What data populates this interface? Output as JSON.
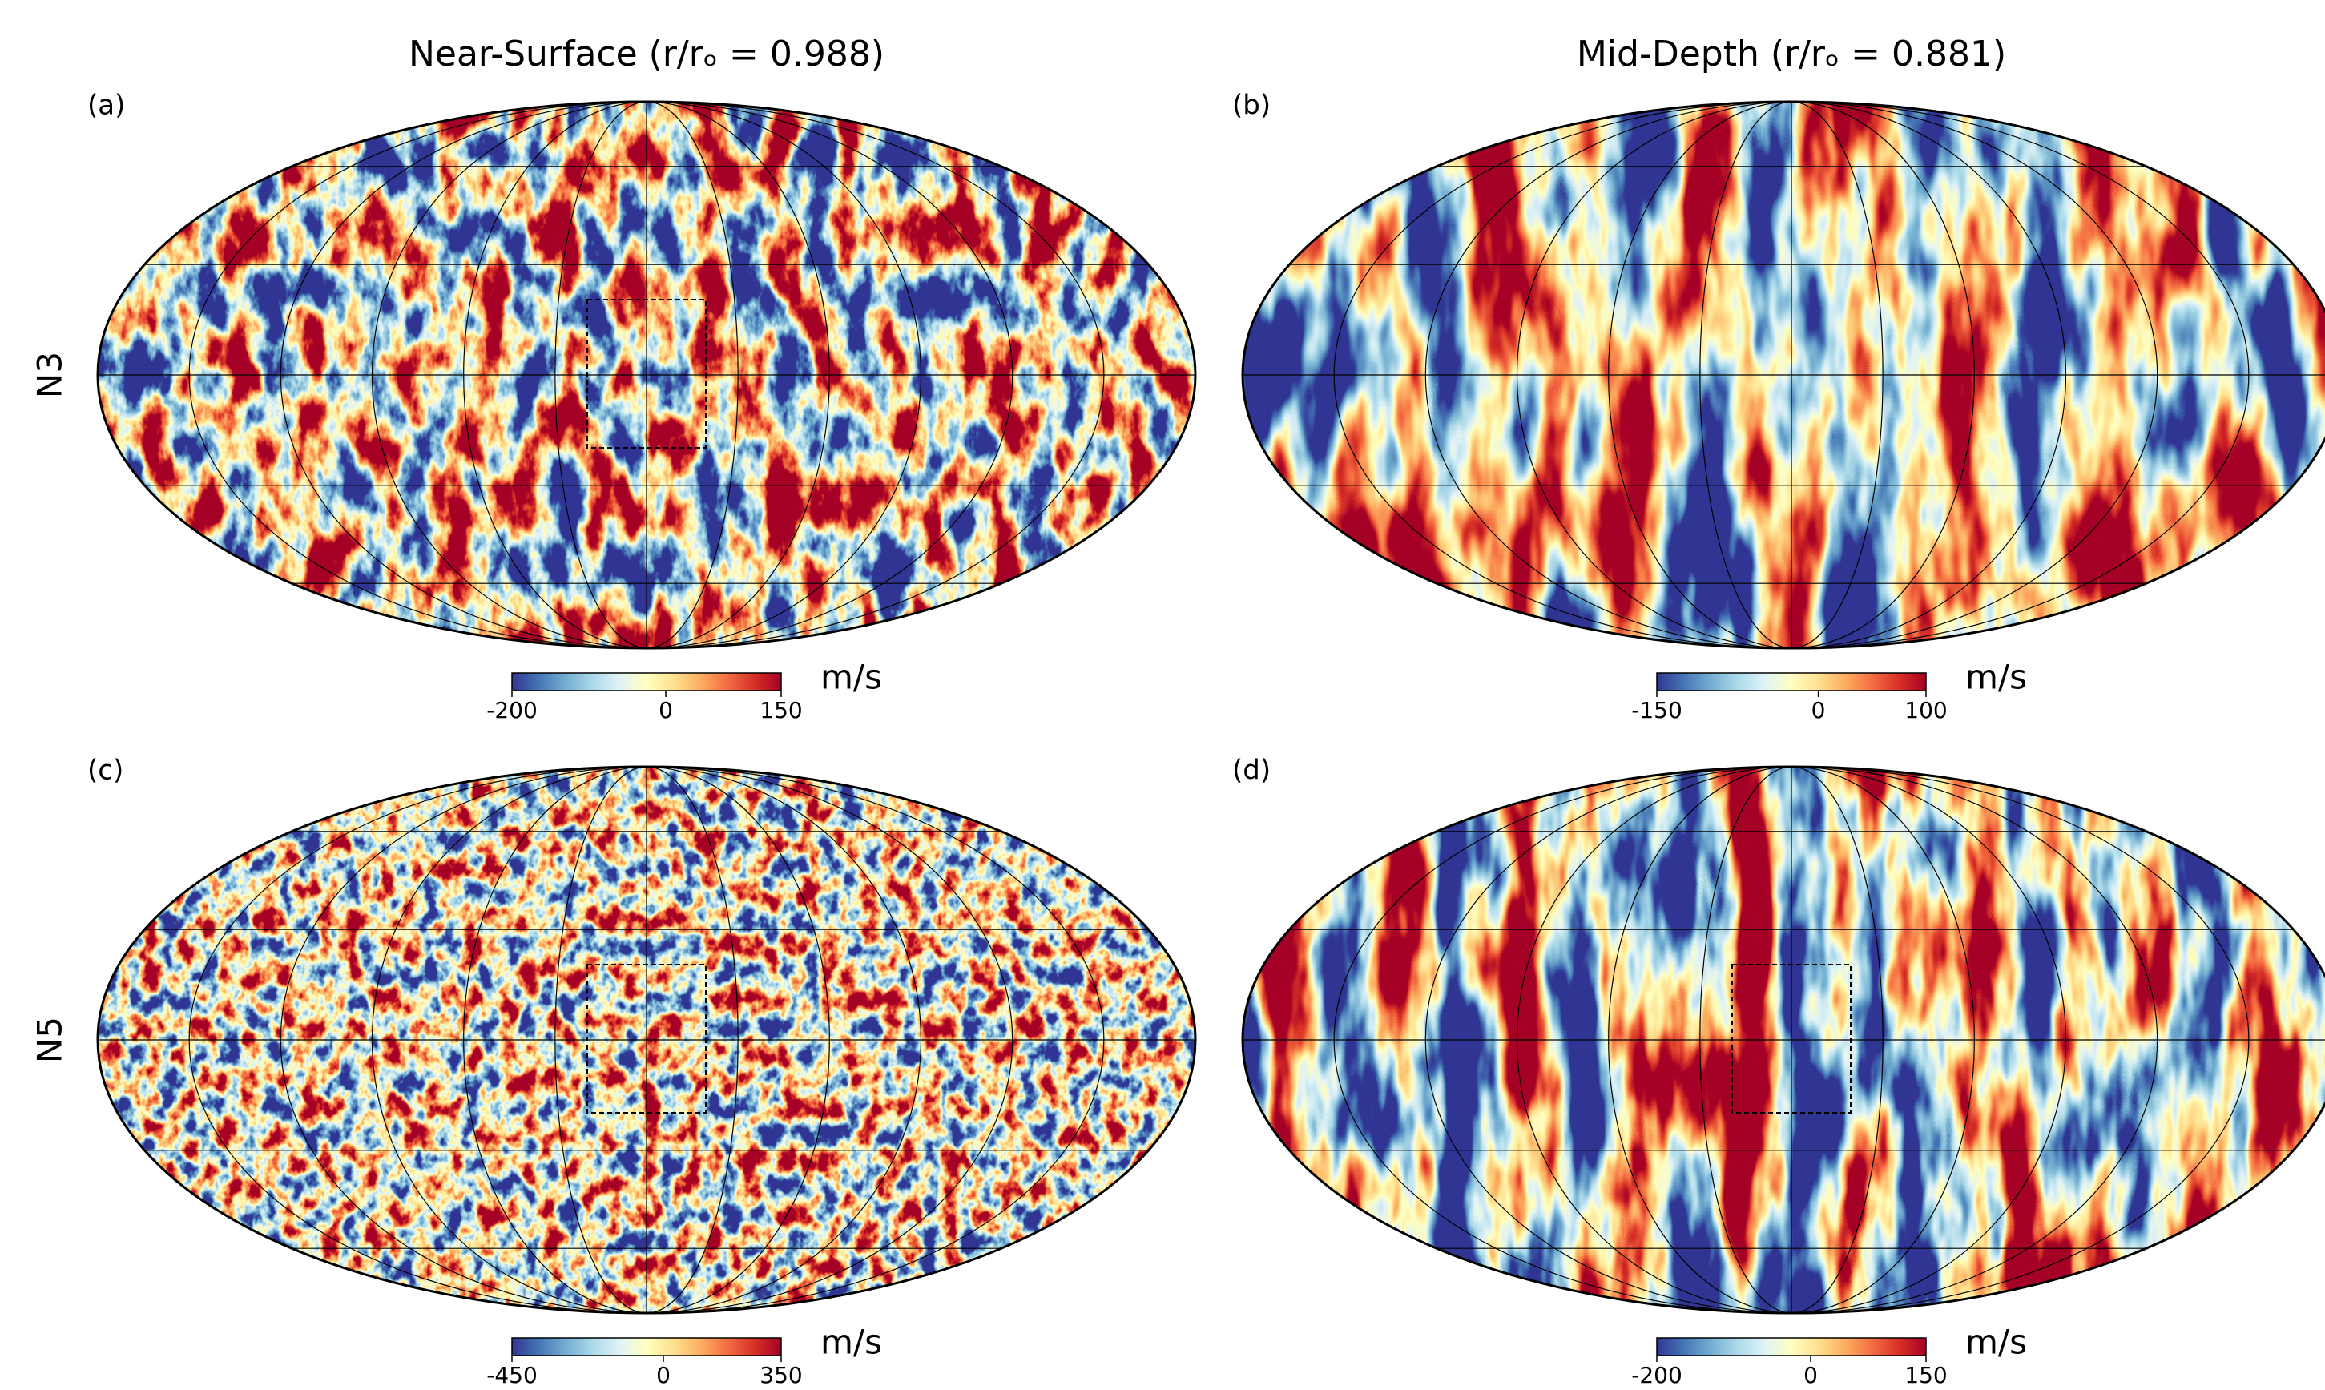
{
  "column_titles": [
    "Near-Surface (r/rₒ = 0.988)",
    "Mid-Depth (r/rₒ = 0.881)"
  ],
  "row_labels": [
    "N3",
    "N5"
  ],
  "panels": [
    {
      "label": "(a)",
      "box": true,
      "colorbar": {
        "unit": "m/s",
        "lim": [
          -200,
          150
        ],
        "ticks": [
          -200,
          0,
          150
        ]
      }
    },
    {
      "label": "(b)",
      "box": false,
      "colorbar": {
        "unit": "m/s",
        "lim": [
          -150,
          100
        ],
        "ticks": [
          -150,
          0,
          100
        ]
      }
    },
    {
      "label": "(c)",
      "box": true,
      "colorbar": {
        "unit": "m/s",
        "lim": [
          -450,
          350
        ],
        "ticks": [
          -450,
          0,
          350
        ]
      }
    },
    {
      "label": "(d)",
      "box": true,
      "colorbar": {
        "unit": "m/s",
        "lim": [
          -200,
          150
        ],
        "ticks": [
          -200,
          0,
          150
        ]
      }
    }
  ]
}
